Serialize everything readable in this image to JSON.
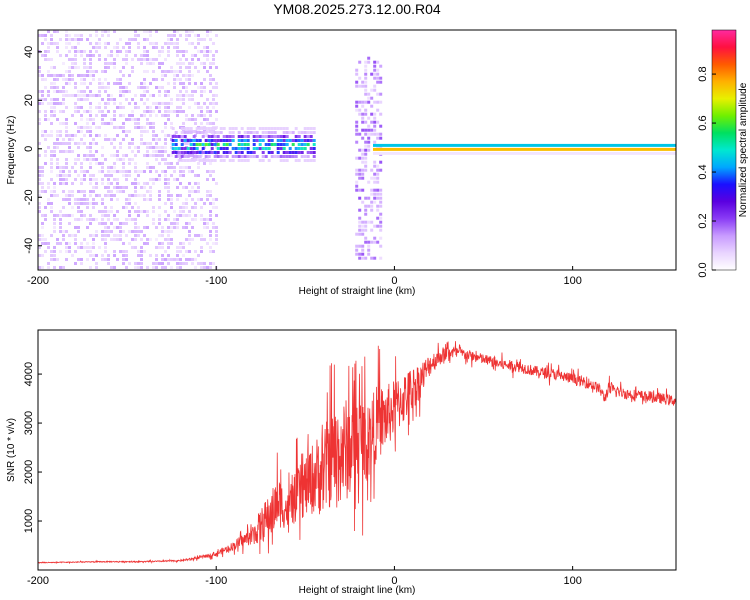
{
  "page": {
    "title": "YM08.2025.273.12.00.R04"
  },
  "chart_data": [
    {
      "type": "heatmap",
      "xlabel": "Height of straight line (km)",
      "ylabel": "Frequency (Hz)",
      "xlim": [
        -200,
        158
      ],
      "ylim": [
        -50,
        49
      ],
      "xticks": [
        "-200",
        "-100",
        "0",
        "100"
      ],
      "yticks": [
        "-40",
        "-20",
        "0",
        "20",
        "40"
      ],
      "colorbar": {
        "label": "Normalized spectral amplitude",
        "range": [
          0,
          0.98
        ],
        "ticks": [
          "0.0",
          "0.2",
          "0.4",
          "0.6",
          "0.8"
        ],
        "colormap": [
          "#ffffff",
          "#e9d4ff",
          "#c89bff",
          "#8a3cf5",
          "#5a00e0",
          "#1a10ff",
          "#00a8ff",
          "#00e8d0",
          "#00e060",
          "#70f000",
          "#e8f000",
          "#ffb000",
          "#ff5a00",
          "#ff1040",
          "#ff2aa0"
        ]
      },
      "regions": [
        {
          "x_range": [
            -200,
            -100
          ],
          "description": "broadband scattered low amplitude",
          "freq_range": [
            -50,
            49
          ],
          "amplitude": 0.1
        },
        {
          "x_range": [
            -125,
            -45
          ],
          "description": "band near 0 Hz, mid amplitude",
          "freq_range": [
            -5,
            9
          ],
          "amplitude": 0.45
        },
        {
          "x_range": [
            -22,
            -8
          ],
          "description": "vertical broadband stripe",
          "freq_range": [
            -46,
            38
          ],
          "amplitude": 0.15
        },
        {
          "x_range": [
            -12,
            158
          ],
          "description": "strong narrow line at 0 Hz",
          "freq_range": [
            -2,
            2
          ],
          "amplitude": 0.98
        }
      ],
      "grid": false
    },
    {
      "type": "line",
      "xlabel": "Height of straight line (km)",
      "ylabel": "SNR (10 * v/v)",
      "xlim": [
        -200,
        158
      ],
      "ylim": [
        0,
        4900
      ],
      "xticks": [
        "-200",
        "-100",
        "0",
        "100"
      ],
      "yticks": [
        "1000",
        "2000",
        "3000",
        "4000"
      ],
      "series": [
        {
          "color": "#ee3333",
          "x": [
            -200,
            -180,
            -160,
            -140,
            -120,
            -110,
            -100,
            -90,
            -80,
            -75,
            -70,
            -65,
            -60,
            -55,
            -50,
            -45,
            -40,
            -35,
            -30,
            -25,
            -20,
            -15,
            -10,
            -5,
            0,
            5,
            10,
            15,
            20,
            25,
            30,
            35,
            40,
            45,
            50,
            60,
            70,
            80,
            90,
            100,
            110,
            115,
            118,
            120,
            125,
            130,
            140,
            150,
            158
          ],
          "values": [
            150,
            160,
            170,
            170,
            190,
            250,
            330,
            500,
            700,
            900,
            1100,
            1400,
            1200,
            1500,
            1700,
            1900,
            2000,
            2300,
            2400,
            2500,
            2700,
            2600,
            3000,
            3100,
            3300,
            3500,
            3700,
            3900,
            4200,
            4350,
            4450,
            4450,
            4400,
            4350,
            4300,
            4200,
            4150,
            4050,
            4000,
            3900,
            3800,
            3700,
            3500,
            3700,
            3650,
            3600,
            3550,
            3500,
            3450
          ],
          "spike_amplitude": [
            20,
            20,
            25,
            25,
            30,
            60,
            100,
            200,
            400,
            800,
            1000,
            1200,
            800,
            1200,
            1400,
            1700,
            2000,
            2200,
            2400,
            2300,
            2100,
            1800,
            1700,
            1500,
            1300,
            1200,
            1000,
            800,
            500,
            400,
            300,
            250,
            250,
            250,
            250,
            250,
            250,
            250,
            250,
            250,
            250,
            250,
            250,
            300,
            250,
            250,
            250,
            250,
            250
          ]
        }
      ],
      "grid": false
    }
  ]
}
